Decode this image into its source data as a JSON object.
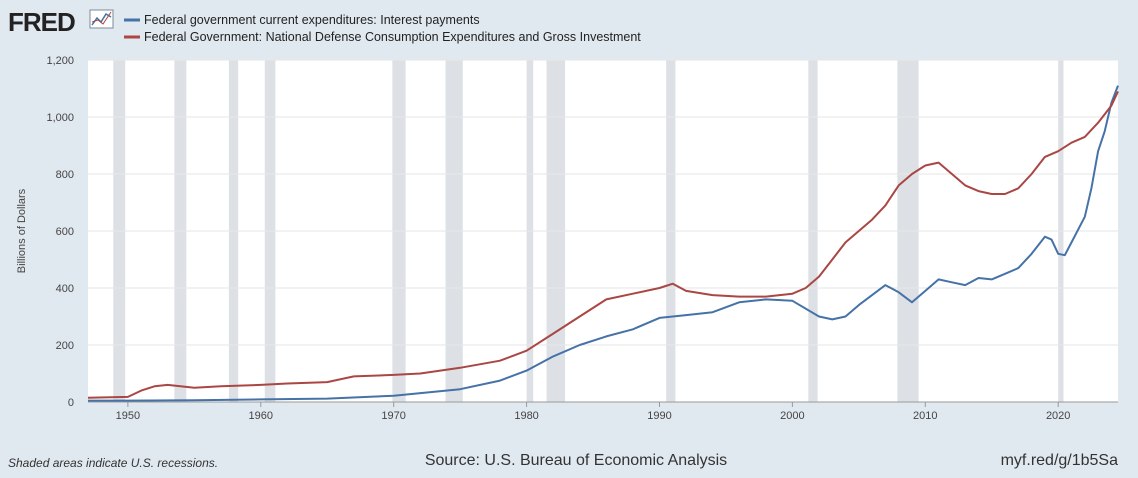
{
  "header": {
    "logo_text": "FRED",
    "logo_icon": "line-chart-icon"
  },
  "colors": {
    "series1": "#4572a7",
    "series2": "#aa4643",
    "plot_bg": "#ffffff",
    "page_bg": "#e1e9f0",
    "recession": "#dde1e5",
    "grid": "#e6e6e6"
  },
  "footer": {
    "note": "Shaded areas indicate U.S. recessions.",
    "source": "Source: U.S. Bureau of Economic Analysis",
    "link": "myf.red/g/1b5Sa"
  },
  "chart_data": {
    "type": "line",
    "title": "",
    "xlabel": "",
    "ylabel": "Billions of Dollars",
    "xlim": [
      1947,
      2024.5
    ],
    "ylim": [
      0,
      1200
    ],
    "y_ticks": [
      0,
      200,
      400,
      600,
      800,
      1000,
      1200
    ],
    "y_tick_labels": [
      "0",
      "200",
      "400",
      "600",
      "800",
      "1,000",
      "1,200"
    ],
    "x_ticks": [
      1950,
      1960,
      1970,
      1980,
      1990,
      2000,
      2010,
      2020
    ],
    "x_tick_labels": [
      "1950",
      "1960",
      "1970",
      "1980",
      "1990",
      "2000",
      "2010",
      "2020"
    ],
    "grid": "horizontal",
    "legend_position": "top-left",
    "recessions": [
      [
        1948.9,
        1949.8
      ],
      [
        1953.5,
        1954.4
      ],
      [
        1957.6,
        1958.3
      ],
      [
        1960.3,
        1961.1
      ],
      [
        1969.9,
        1970.9
      ],
      [
        1973.9,
        1975.2
      ],
      [
        1980.0,
        1980.5
      ],
      [
        1981.5,
        1982.9
      ],
      [
        1990.5,
        1991.2
      ],
      [
        2001.2,
        2001.9
      ],
      [
        2007.9,
        2009.5
      ],
      [
        2020.0,
        2020.4
      ]
    ],
    "series": [
      {
        "name": "Federal government current expenditures: Interest payments",
        "x": [
          1947,
          1950,
          1955,
          1960,
          1965,
          1970,
          1975,
          1978,
          1980,
          1982,
          1984,
          1986,
          1988,
          1990,
          1992,
          1994,
          1996,
          1998,
          2000,
          2002,
          2003,
          2004,
          2005,
          2006,
          2007,
          2008,
          2009,
          2010,
          2011,
          2012,
          2013,
          2014,
          2015,
          2016,
          2017,
          2018,
          2019,
          2019.5,
          2020,
          2020.5,
          2021,
          2022,
          2022.5,
          2023,
          2023.5,
          2024,
          2024.5
        ],
        "values": [
          5,
          5,
          6,
          9,
          12,
          22,
          45,
          75,
          110,
          160,
          200,
          230,
          255,
          295,
          305,
          315,
          350,
          360,
          355,
          300,
          290,
          300,
          340,
          375,
          410,
          385,
          350,
          390,
          430,
          420,
          410,
          435,
          430,
          450,
          470,
          520,
          580,
          570,
          520,
          515,
          560,
          650,
          750,
          880,
          950,
          1050,
          1110
        ]
      },
      {
        "name": "Federal Government: National Defense Consumption Expenditures and Gross Investment",
        "x": [
          1947,
          1950,
          1951,
          1952,
          1953,
          1955,
          1957,
          1960,
          1962,
          1965,
          1967,
          1970,
          1972,
          1975,
          1978,
          1980,
          1982,
          1984,
          1986,
          1988,
          1990,
          1991,
          1992,
          1994,
          1996,
          1998,
          2000,
          2001,
          2002,
          2003,
          2004,
          2005,
          2006,
          2007,
          2008,
          2009,
          2010,
          2011,
          2012,
          2013,
          2014,
          2015,
          2016,
          2017,
          2018,
          2019,
          2020,
          2021,
          2022,
          2023,
          2024,
          2024.5
        ],
        "values": [
          15,
          18,
          40,
          55,
          60,
          50,
          55,
          60,
          65,
          70,
          90,
          95,
          100,
          120,
          145,
          180,
          240,
          300,
          360,
          380,
          400,
          415,
          390,
          375,
          370,
          370,
          380,
          400,
          440,
          500,
          560,
          600,
          640,
          690,
          760,
          800,
          830,
          840,
          800,
          760,
          740,
          730,
          730,
          750,
          800,
          860,
          880,
          910,
          930,
          980,
          1040,
          1090
        ]
      }
    ]
  }
}
